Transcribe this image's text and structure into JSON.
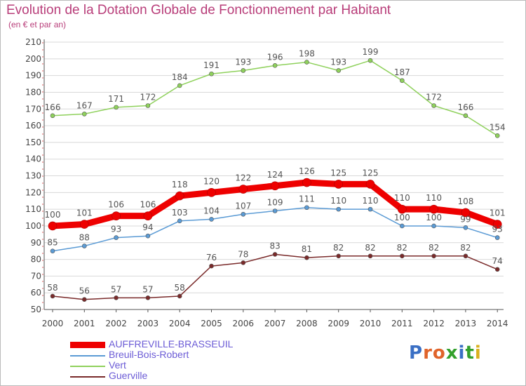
{
  "header": {
    "title": "Evolution de la Dotation Globale de Fonctionnement par Habitant",
    "subtitle": "(en € et par an)"
  },
  "brand": {
    "logo_text": "Proxiti",
    "letter_colors": [
      "#3a6fc4",
      "#e0632a",
      "#e0632a",
      "#33a02c",
      "#3a6fc4",
      "#33a02c",
      "#d9b01e"
    ]
  },
  "chart_data": {
    "type": "line",
    "categories": [
      "2000",
      "2001",
      "2002",
      "2003",
      "2004",
      "2005",
      "2006",
      "2007",
      "2008",
      "2009",
      "2010",
      "2011",
      "2012",
      "2013",
      "2014"
    ],
    "y_ticks": [
      "50",
      "60",
      "70",
      "80",
      "90",
      "100",
      "110",
      "120",
      "130",
      "140",
      "150",
      "160",
      "170",
      "180",
      "190",
      "200",
      "210"
    ],
    "ylim": [
      50,
      210
    ],
    "grid": "horizontal",
    "legend_position": "bottom-left",
    "series": [
      {
        "name": "AUFFREVILLE-BRASSEUIL",
        "color": "#ee0000",
        "emphasis": true,
        "values": [
          100,
          101,
          106,
          106,
          118,
          120,
          122,
          124,
          126,
          125,
          125,
          110,
          110,
          108,
          101
        ]
      },
      {
        "name": "Breuil-Bois-Robert",
        "color": "#5b9bd5",
        "emphasis": false,
        "values": [
          85,
          88,
          93,
          94,
          103,
          104,
          107,
          109,
          111,
          110,
          110,
          100,
          100,
          99,
          93
        ]
      },
      {
        "name": "Vert",
        "color": "#8fd15c",
        "emphasis": false,
        "values": [
          166,
          167,
          171,
          172,
          184,
          191,
          193,
          196,
          198,
          193,
          199,
          187,
          172,
          166,
          154
        ]
      },
      {
        "name": "Guerville",
        "color": "#7a2a2a",
        "emphasis": false,
        "values": [
          58,
          56,
          57,
          57,
          58,
          76,
          78,
          83,
          81,
          82,
          82,
          82,
          82,
          82,
          74
        ]
      }
    ]
  }
}
